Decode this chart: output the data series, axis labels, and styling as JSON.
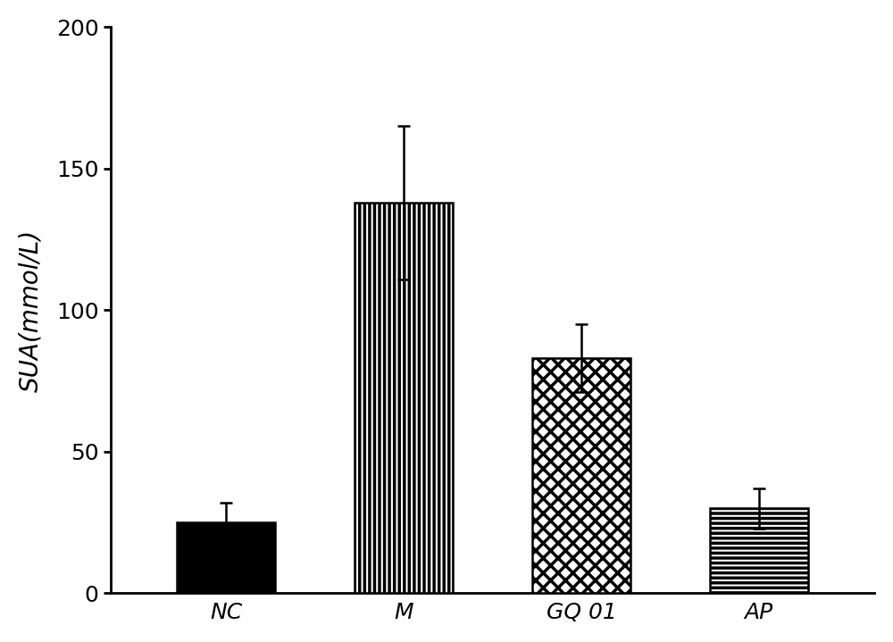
{
  "categories": [
    "NC",
    "M",
    "GQ 01",
    "AP"
  ],
  "values": [
    25.0,
    138.0,
    83.0,
    30.0
  ],
  "errors": [
    7.0,
    27.0,
    12.0,
    7.0
  ],
  "ylabel": "SUA(mmol/L)",
  "ylim": [
    0,
    200
  ],
  "yticks": [
    0,
    50,
    100,
    150,
    200
  ],
  "bar_width": 0.55,
  "figsize": [
    10.0,
    7.19
  ],
  "dpi": 100,
  "background_color": "#ffffff",
  "tick_fontsize": 18,
  "label_fontsize": 20,
  "capsize": 5
}
